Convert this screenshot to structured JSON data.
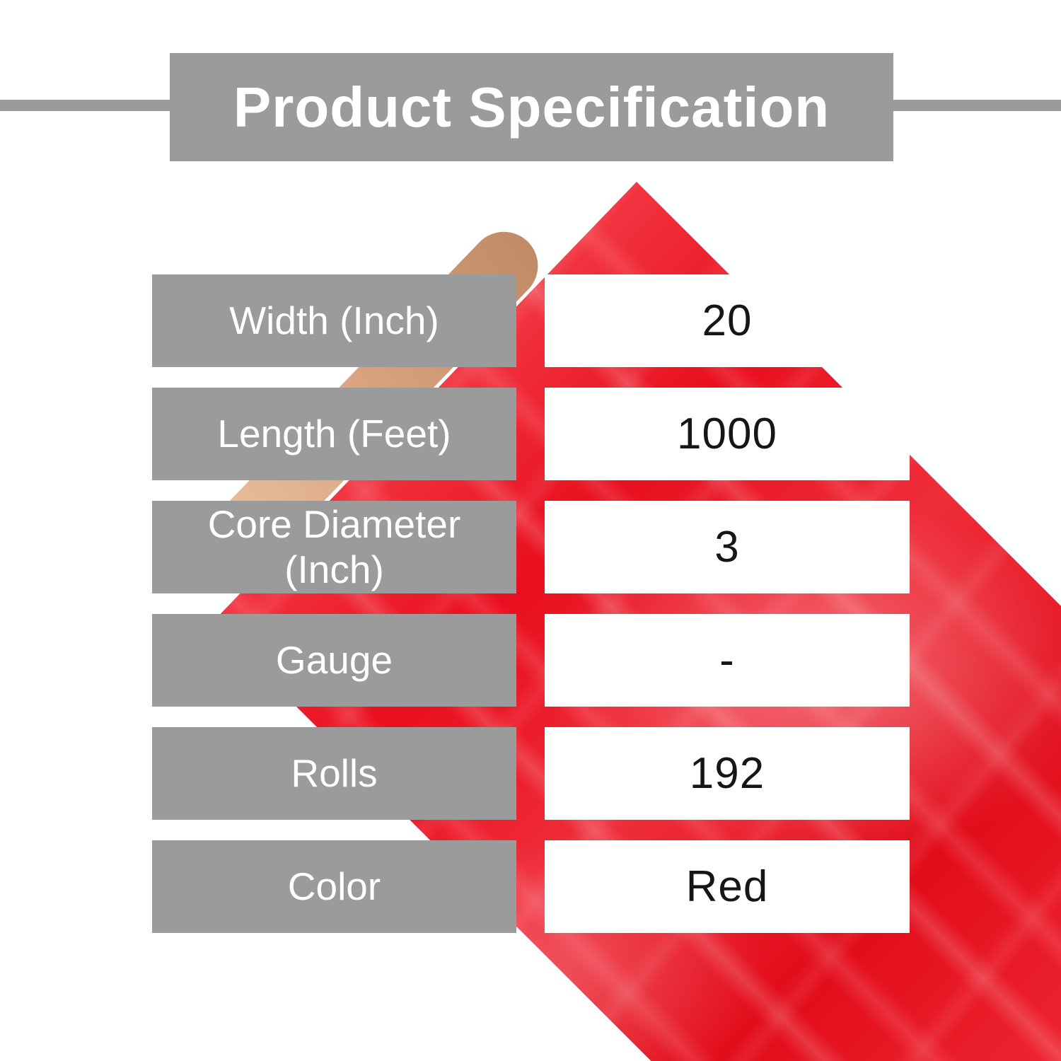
{
  "header": {
    "title": "Product Specification"
  },
  "table": {
    "rows": [
      {
        "label": "Width (Inch)",
        "value": "20"
      },
      {
        "label": "Length (Feet)",
        "value": "1000"
      },
      {
        "label": "Core Diameter (Inch)",
        "value": "3"
      },
      {
        "label": "Gauge",
        "value": "-"
      },
      {
        "label": "Rolls",
        "value": "192"
      },
      {
        "label": "Color",
        "value": "Red"
      }
    ]
  },
  "photo": {
    "subject": "hand holding red stretch film roll",
    "film_color": "#e90f1e",
    "film_highlight": "#f4555c",
    "hand_color": "#d8a17d"
  },
  "theme": {
    "gray": "#9b9b9b",
    "label_text": "#ffffff",
    "value_text": "#161616",
    "film_red": "#e90f1e",
    "film_red_dark": "#d30a16",
    "film_red_light": "#f4555c",
    "hand": "#d8a17d",
    "page_bg": "#ffffff"
  }
}
